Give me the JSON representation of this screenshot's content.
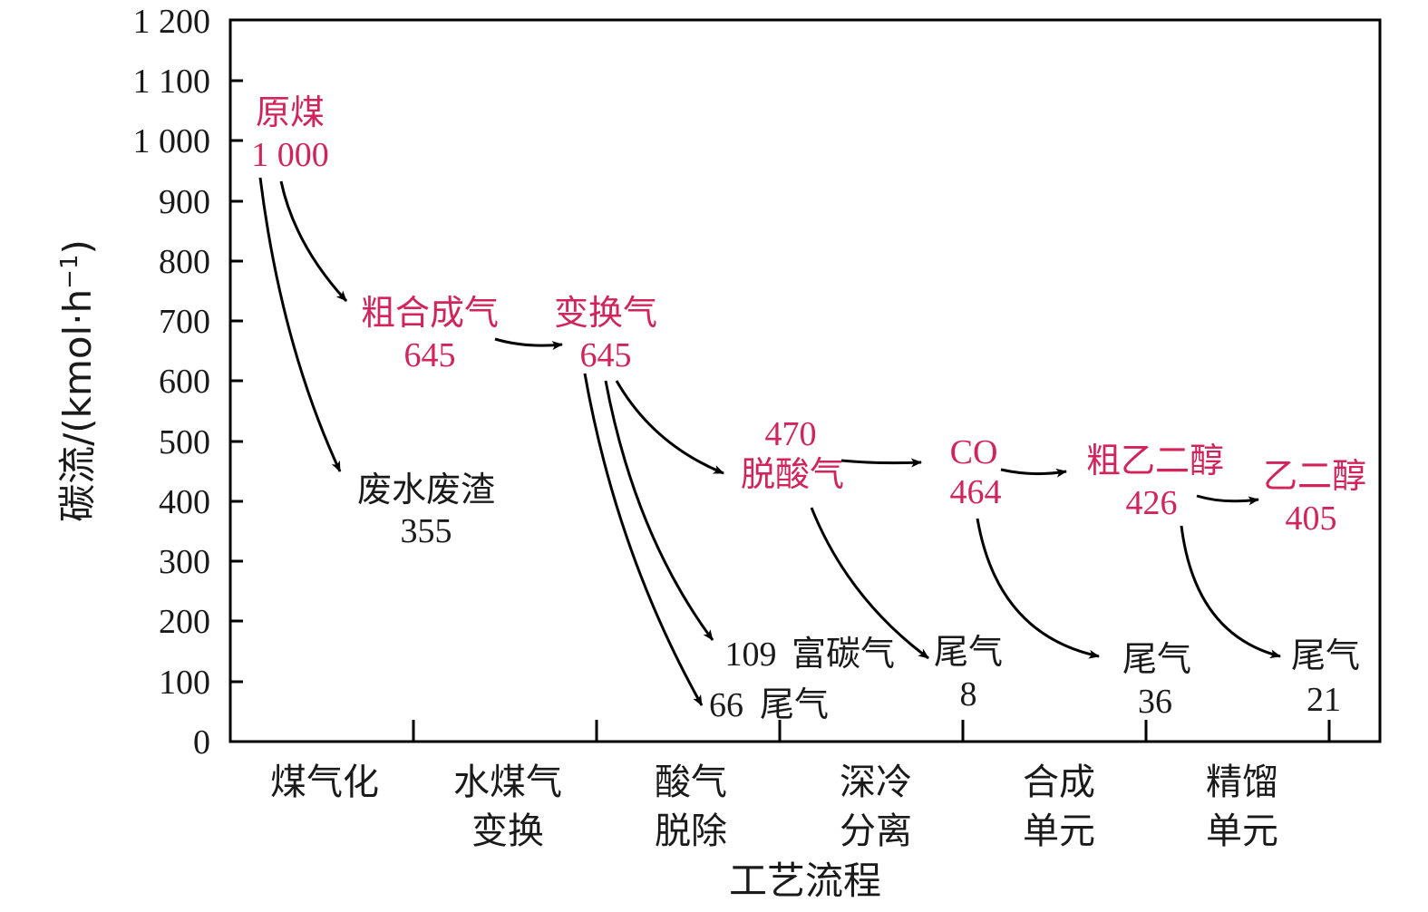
{
  "y_axis": {
    "label": "碳流/(kmol·h",
    "label_sup": "−1",
    "label_close": ")",
    "ticks": [
      "0",
      "100",
      "200",
      "300",
      "400",
      "500",
      "600",
      "700",
      "800",
      "900",
      "1 000",
      "1 100",
      "1 200"
    ]
  },
  "x_axis": {
    "label": "工艺流程",
    "stages": [
      [
        "煤气化"
      ],
      [
        "水煤气",
        "变换"
      ],
      [
        "酸气",
        "脱除"
      ],
      [
        "深冷",
        "分离"
      ],
      [
        "合成",
        "单元"
      ],
      [
        "精馏",
        "单元"
      ]
    ]
  },
  "nodes": {
    "raw_coal": {
      "name": "原煤",
      "value": "1 000"
    },
    "crude_syngas": {
      "name": "粗合成气",
      "value": "645"
    },
    "shift_gas": {
      "name": "变换气",
      "value": "645"
    },
    "wastewater": {
      "name": "废水废渣",
      "value": "355"
    },
    "deacid_gas": {
      "name": "脱酸气",
      "value": "470"
    },
    "co": {
      "name": "CO",
      "value": "464"
    },
    "crude_eg": {
      "name": "粗乙二醇",
      "value": "426"
    },
    "eg": {
      "name": "乙二醇",
      "value": "405"
    },
    "carbon_rich": {
      "name": "富碳气",
      "value": "109"
    },
    "tail_66": {
      "name": "尾气",
      "value": "66"
    },
    "tail_8": {
      "name": "尾气",
      "value": "8"
    },
    "tail_36": {
      "name": "尾气",
      "value": "36"
    },
    "tail_21": {
      "name": "尾气",
      "value": "21"
    }
  },
  "colors": {
    "product": "#d2245a",
    "byproduct": "#1a1a1a",
    "axis": "#000000"
  }
}
